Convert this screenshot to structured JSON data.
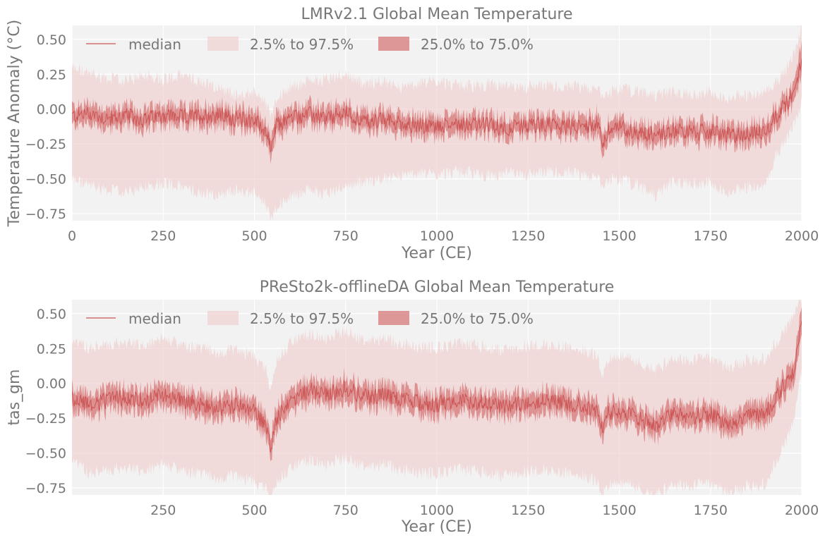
{
  "chart_data": [
    {
      "type": "area",
      "title": "LMRv2.1 Global Mean Temperature",
      "xlabel": "Year (CE)",
      "ylabel": "Temperature Anomaly (°C)",
      "xlim": [
        0,
        2000
      ],
      "ylim": [
        -0.8,
        0.6
      ],
      "xticks": [
        0,
        250,
        500,
        750,
        1000,
        1250,
        1500,
        1750,
        2000
      ],
      "yticks": [
        -0.75,
        -0.5,
        -0.25,
        0.0,
        0.25,
        0.5
      ],
      "xtick_labels": [
        "0",
        "250",
        "500",
        "750",
        "1000",
        "1250",
        "1500",
        "1750",
        "2000"
      ],
      "ytick_labels": [
        "−0.75",
        "−0.50",
        "−0.25",
        "0.00",
        "0.25",
        "0.50"
      ],
      "grid": true,
      "legend_position": "top-left",
      "legend": [
        "median",
        "2.5% to 97.5%",
        "25.0% to 75.0%"
      ],
      "series_colors": {
        "median": "#cc5555",
        "outer_band": "#eecaca",
        "inner_band": "#d77878"
      },
      "x": [
        0,
        50,
        100,
        150,
        200,
        250,
        300,
        350,
        400,
        450,
        500,
        530,
        545,
        560,
        600,
        650,
        700,
        750,
        800,
        850,
        900,
        950,
        1000,
        1050,
        1100,
        1150,
        1200,
        1250,
        1300,
        1350,
        1400,
        1440,
        1455,
        1470,
        1500,
        1550,
        1600,
        1650,
        1700,
        1750,
        1800,
        1850,
        1900,
        1930,
        1960,
        1980,
        2000
      ],
      "median": [
        -0.05,
        -0.03,
        -0.07,
        -0.05,
        -0.08,
        -0.04,
        -0.06,
        -0.05,
        -0.04,
        -0.07,
        -0.08,
        -0.15,
        -0.28,
        -0.12,
        -0.06,
        -0.04,
        -0.07,
        -0.03,
        -0.09,
        -0.08,
        -0.1,
        -0.12,
        -0.13,
        -0.1,
        -0.11,
        -0.12,
        -0.14,
        -0.12,
        -0.11,
        -0.13,
        -0.12,
        -0.1,
        -0.25,
        -0.15,
        -0.13,
        -0.17,
        -0.18,
        -0.15,
        -0.17,
        -0.16,
        -0.19,
        -0.18,
        -0.16,
        -0.05,
        0.05,
        0.12,
        0.35
      ],
      "p25": [
        -0.12,
        -0.1,
        -0.14,
        -0.12,
        -0.15,
        -0.11,
        -0.13,
        -0.12,
        -0.11,
        -0.14,
        -0.15,
        -0.22,
        -0.36,
        -0.2,
        -0.13,
        -0.11,
        -0.14,
        -0.1,
        -0.16,
        -0.15,
        -0.17,
        -0.19,
        -0.2,
        -0.17,
        -0.18,
        -0.19,
        -0.21,
        -0.19,
        -0.18,
        -0.2,
        -0.19,
        -0.17,
        -0.33,
        -0.22,
        -0.2,
        -0.24,
        -0.25,
        -0.22,
        -0.24,
        -0.23,
        -0.26,
        -0.25,
        -0.23,
        -0.12,
        -0.02,
        0.05,
        0.25
      ],
      "p75": [
        0.02,
        0.04,
        0.0,
        0.02,
        -0.01,
        0.03,
        0.01,
        0.02,
        0.03,
        0.0,
        -0.01,
        -0.08,
        -0.2,
        -0.05,
        0.01,
        0.03,
        0.0,
        0.04,
        -0.02,
        -0.01,
        -0.03,
        -0.05,
        -0.06,
        -0.03,
        -0.04,
        -0.05,
        -0.07,
        -0.05,
        -0.04,
        -0.06,
        -0.05,
        -0.03,
        -0.17,
        -0.08,
        -0.06,
        -0.1,
        -0.11,
        -0.08,
        -0.1,
        -0.09,
        -0.12,
        -0.11,
        -0.09,
        0.02,
        0.12,
        0.19,
        0.48
      ],
      "p2_5": [
        -0.5,
        -0.55,
        -0.58,
        -0.6,
        -0.55,
        -0.52,
        -0.56,
        -0.6,
        -0.62,
        -0.58,
        -0.6,
        -0.68,
        -0.78,
        -0.7,
        -0.62,
        -0.58,
        -0.6,
        -0.55,
        -0.52,
        -0.5,
        -0.48,
        -0.46,
        -0.47,
        -0.45,
        -0.46,
        -0.48,
        -0.46,
        -0.47,
        -0.45,
        -0.46,
        -0.47,
        -0.48,
        -0.6,
        -0.5,
        -0.5,
        -0.55,
        -0.62,
        -0.52,
        -0.54,
        -0.53,
        -0.6,
        -0.56,
        -0.55,
        -0.32,
        -0.2,
        -0.1,
        0.05
      ],
      "p97_5": [
        0.3,
        0.25,
        0.22,
        0.2,
        0.25,
        0.22,
        0.24,
        0.2,
        0.15,
        0.1,
        0.12,
        0.05,
        -0.05,
        0.08,
        0.16,
        0.2,
        0.22,
        0.25,
        0.18,
        0.2,
        0.15,
        0.18,
        0.2,
        0.17,
        0.16,
        0.18,
        0.15,
        0.16,
        0.17,
        0.15,
        0.16,
        0.15,
        0.05,
        0.12,
        0.15,
        0.12,
        0.1,
        0.12,
        0.1,
        0.12,
        0.08,
        0.1,
        0.12,
        0.2,
        0.3,
        0.4,
        0.6
      ]
    },
    {
      "type": "area",
      "title": "PReSto2k-offlineDA Global Mean Temperature",
      "xlabel": "Year (CE)",
      "ylabel": "tas_gm",
      "xlim": [
        0,
        2000
      ],
      "ylim": [
        -0.8,
        0.6
      ],
      "xticks": [
        250,
        500,
        750,
        1000,
        1250,
        1500,
        1750,
        2000
      ],
      "yticks": [
        -0.75,
        -0.5,
        -0.25,
        0.0,
        0.25,
        0.5
      ],
      "xtick_labels": [
        "250",
        "500",
        "750",
        "1000",
        "1250",
        "1500",
        "1750",
        "2000"
      ],
      "ytick_labels": [
        "−0.75",
        "−0.50",
        "−0.25",
        "0.00",
        "0.25",
        "0.50"
      ],
      "grid": true,
      "legend_position": "top-left",
      "legend": [
        "median",
        "2.5% to 97.5%",
        "25.0% to 75.0%"
      ],
      "series_colors": {
        "median": "#cc5555",
        "outer_band": "#eecaca",
        "inner_band": "#d77878"
      },
      "x": [
        0,
        50,
        100,
        150,
        200,
        250,
        300,
        350,
        400,
        450,
        500,
        530,
        545,
        560,
        600,
        650,
        700,
        750,
        800,
        850,
        900,
        950,
        1000,
        1050,
        1100,
        1150,
        1200,
        1250,
        1300,
        1350,
        1400,
        1440,
        1455,
        1470,
        1500,
        1550,
        1600,
        1650,
        1700,
        1750,
        1800,
        1850,
        1900,
        1930,
        1960,
        1980,
        2000
      ],
      "median": [
        -0.1,
        -0.15,
        -0.12,
        -0.1,
        -0.13,
        -0.08,
        -0.12,
        -0.15,
        -0.18,
        -0.16,
        -0.2,
        -0.3,
        -0.45,
        -0.25,
        -0.12,
        -0.05,
        -0.08,
        -0.03,
        -0.1,
        -0.08,
        -0.12,
        -0.14,
        -0.15,
        -0.12,
        -0.13,
        -0.15,
        -0.17,
        -0.13,
        -0.12,
        -0.14,
        -0.16,
        -0.2,
        -0.35,
        -0.22,
        -0.2,
        -0.25,
        -0.3,
        -0.22,
        -0.24,
        -0.22,
        -0.3,
        -0.24,
        -0.22,
        -0.1,
        0.02,
        0.1,
        0.45
      ],
      "p25": [
        -0.18,
        -0.23,
        -0.2,
        -0.18,
        -0.21,
        -0.16,
        -0.2,
        -0.23,
        -0.26,
        -0.24,
        -0.28,
        -0.38,
        -0.53,
        -0.33,
        -0.2,
        -0.13,
        -0.16,
        -0.11,
        -0.18,
        -0.16,
        -0.2,
        -0.22,
        -0.23,
        -0.2,
        -0.21,
        -0.23,
        -0.25,
        -0.21,
        -0.2,
        -0.22,
        -0.24,
        -0.28,
        -0.43,
        -0.3,
        -0.28,
        -0.33,
        -0.38,
        -0.3,
        -0.32,
        -0.3,
        -0.38,
        -0.32,
        -0.3,
        -0.18,
        -0.06,
        0.02,
        0.35
      ],
      "p75": [
        -0.02,
        -0.07,
        -0.04,
        -0.02,
        -0.05,
        0.0,
        -0.04,
        -0.07,
        -0.1,
        -0.08,
        -0.12,
        -0.22,
        -0.37,
        -0.17,
        -0.04,
        0.03,
        0.0,
        0.05,
        -0.02,
        0.0,
        -0.04,
        -0.06,
        -0.07,
        -0.04,
        -0.05,
        -0.07,
        -0.09,
        -0.05,
        -0.04,
        -0.06,
        -0.08,
        -0.12,
        -0.27,
        -0.14,
        -0.12,
        -0.17,
        -0.22,
        -0.14,
        -0.16,
        -0.14,
        -0.22,
        -0.16,
        -0.14,
        -0.02,
        0.1,
        0.18,
        0.55
      ],
      "p2_5": [
        -0.55,
        -0.65,
        -0.62,
        -0.6,
        -0.63,
        -0.58,
        -0.62,
        -0.65,
        -0.68,
        -0.66,
        -0.7,
        -0.75,
        -0.82,
        -0.72,
        -0.6,
        -0.55,
        -0.58,
        -0.53,
        -0.6,
        -0.58,
        -0.62,
        -0.64,
        -0.65,
        -0.62,
        -0.63,
        -0.65,
        -0.67,
        -0.63,
        -0.62,
        -0.64,
        -0.66,
        -0.7,
        -0.8,
        -0.72,
        -0.7,
        -0.75,
        -0.8,
        -0.72,
        -0.74,
        -0.72,
        -0.8,
        -0.74,
        -0.72,
        -0.55,
        -0.4,
        -0.25,
        0.1
      ],
      "p97_5": [
        0.3,
        0.25,
        0.28,
        0.3,
        0.27,
        0.32,
        0.28,
        0.25,
        0.22,
        0.24,
        0.2,
        0.1,
        -0.05,
        0.15,
        0.3,
        0.35,
        0.32,
        0.38,
        0.3,
        0.32,
        0.28,
        0.26,
        0.25,
        0.28,
        0.27,
        0.25,
        0.23,
        0.27,
        0.28,
        0.26,
        0.24,
        0.2,
        0.05,
        0.18,
        0.2,
        0.15,
        0.1,
        0.18,
        0.16,
        0.18,
        0.1,
        0.16,
        0.18,
        0.3,
        0.4,
        0.5,
        0.6
      ]
    }
  ]
}
